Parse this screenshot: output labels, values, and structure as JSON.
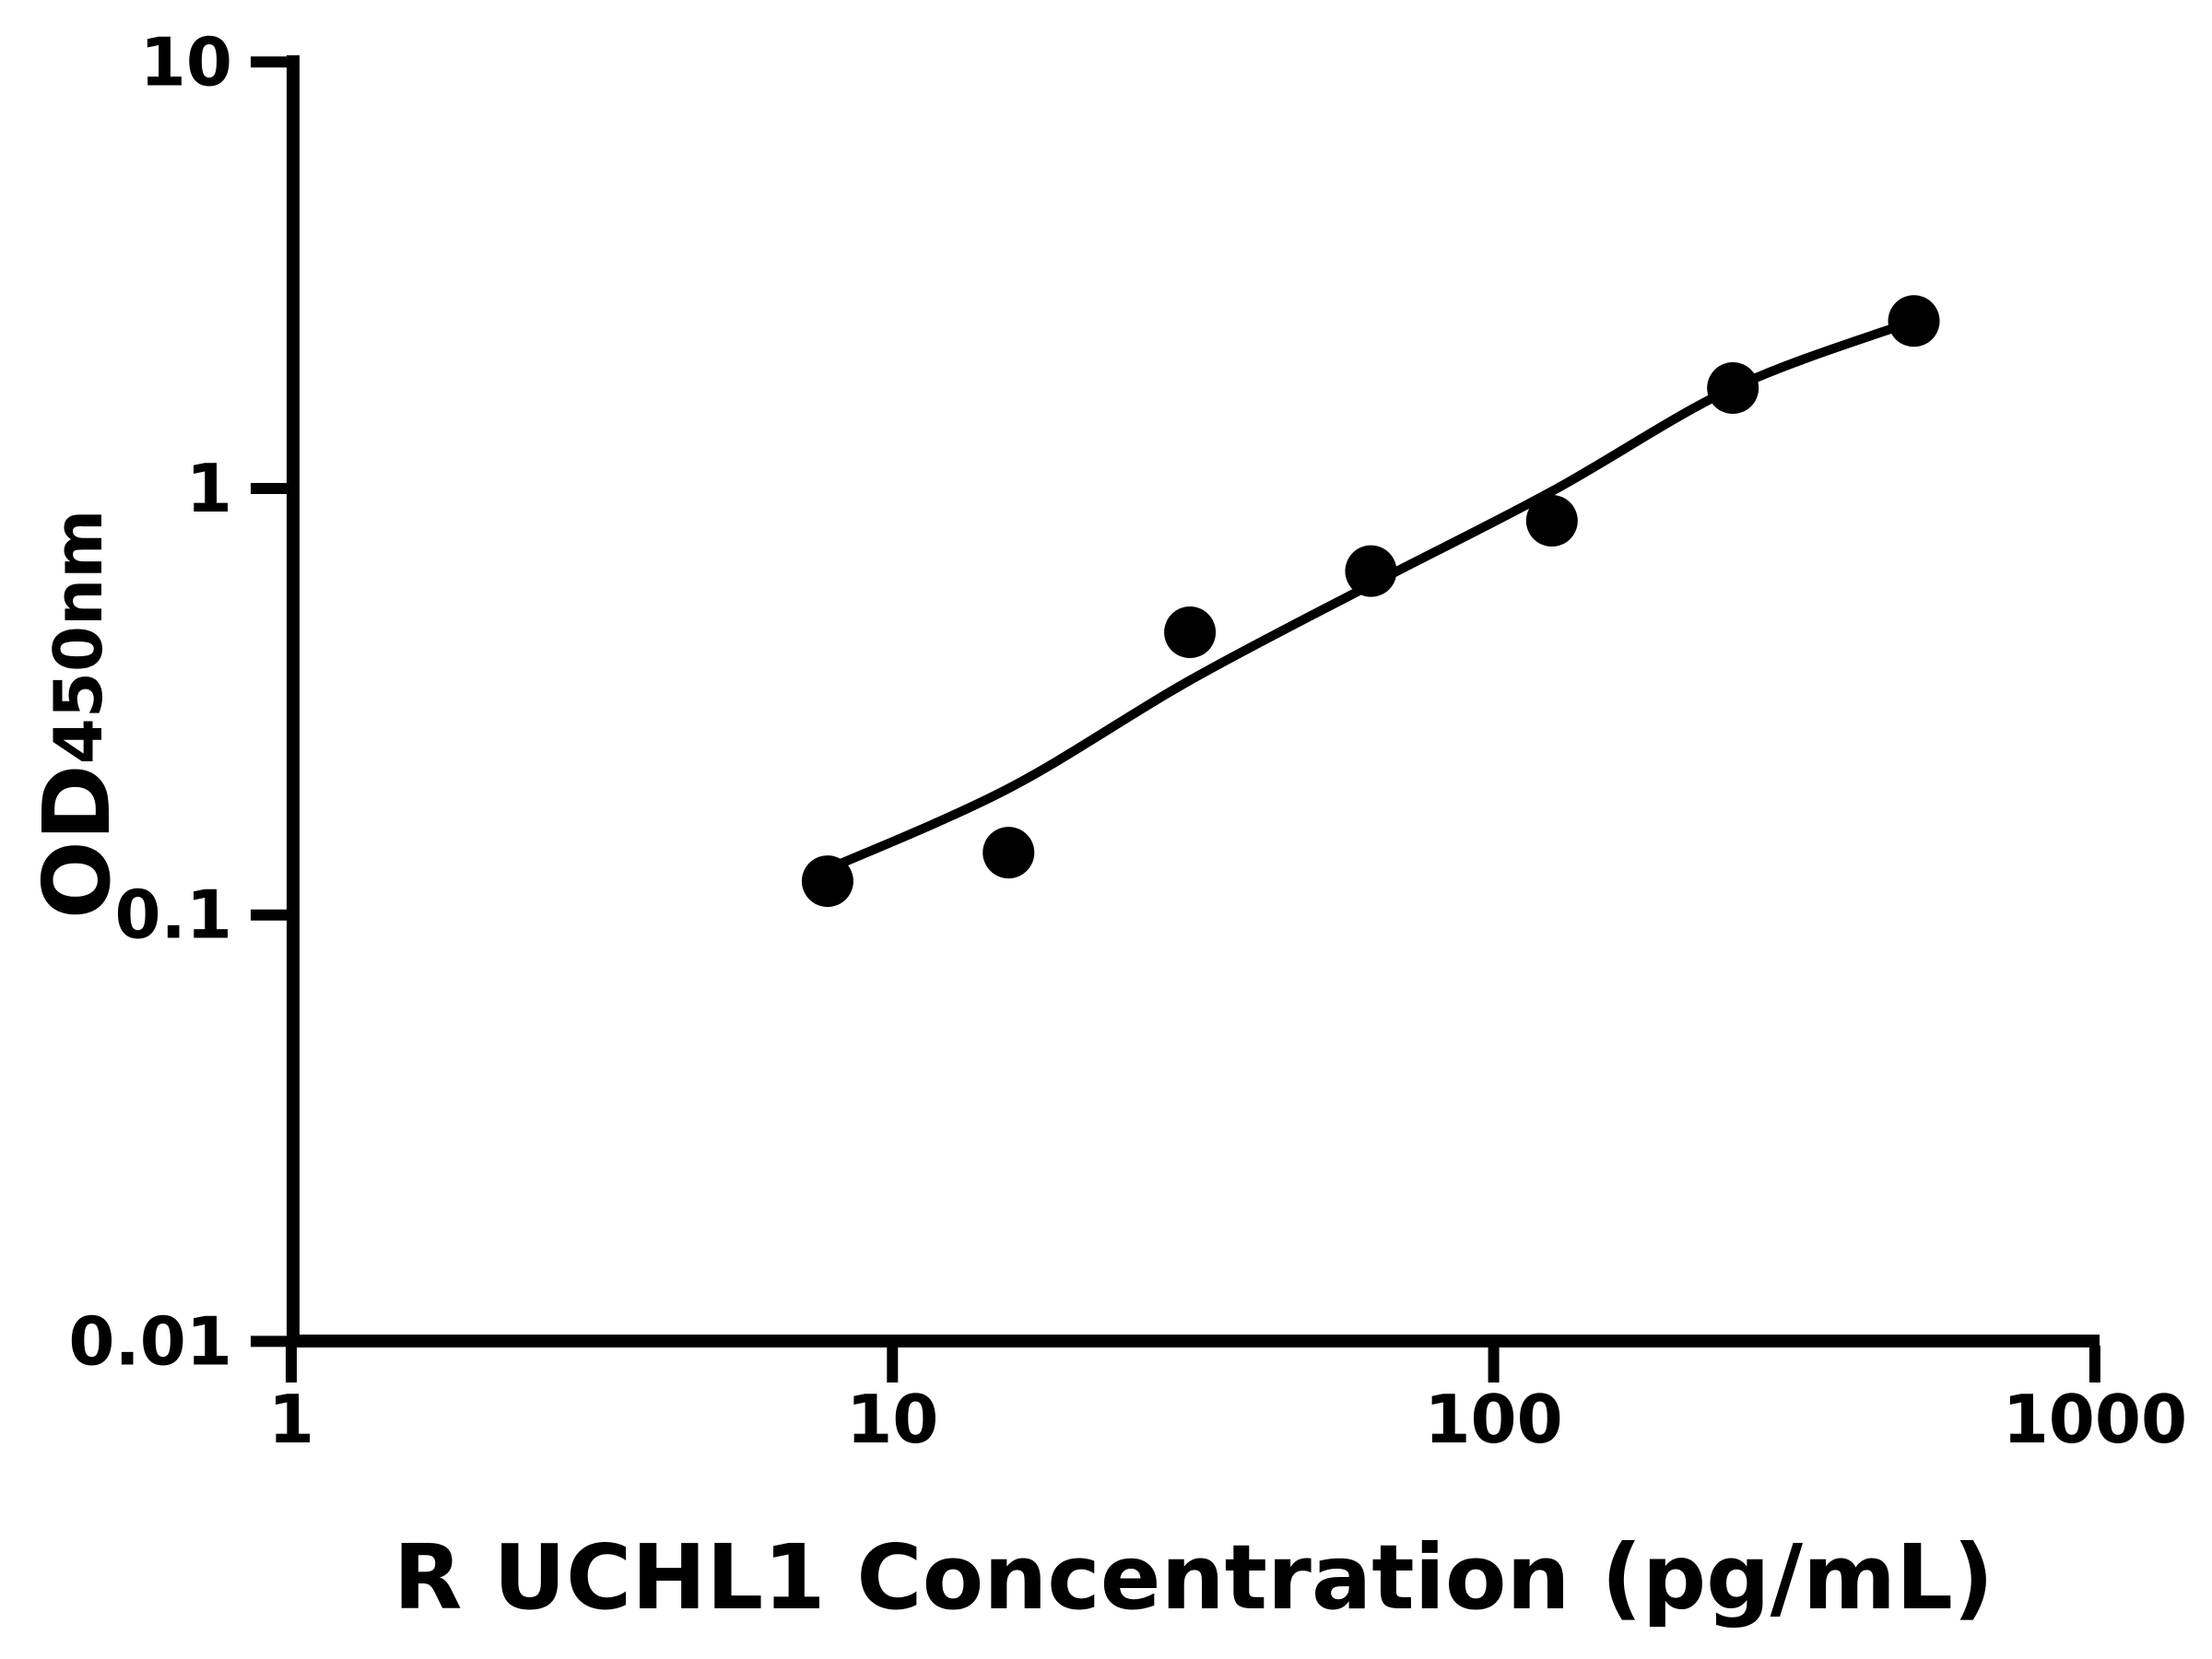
{
  "figure": {
    "background_color": "#ffffff",
    "ink_color": "#000000"
  },
  "chart_data": {
    "type": "scatter",
    "title": "",
    "xlabel": "R UCHL1 Concentration (pg/mL)",
    "ylabel_main": "OD",
    "ylabel_subscript": "450nm",
    "x_scale": "log10",
    "y_scale": "log10",
    "xlim": [
      1,
      1000
    ],
    "ylim": [
      0.01,
      10
    ],
    "grid": false,
    "legend": null,
    "x_ticks": [
      {
        "value": 1,
        "label": "1"
      },
      {
        "value": 10,
        "label": "10"
      },
      {
        "value": 100,
        "label": "100"
      },
      {
        "value": 1000,
        "label": "1000"
      }
    ],
    "y_ticks": [
      {
        "value": 10,
        "label": "10"
      },
      {
        "value": 1,
        "label": "1"
      },
      {
        "value": 0.1,
        "label": "0.1"
      },
      {
        "value": 0.01,
        "label": "0.01"
      }
    ],
    "series": [
      {
        "name": "standard-points",
        "type": "scatter",
        "marker": "filled-circle",
        "color": "#000000",
        "points": [
          {
            "x": 7.8,
            "y": 0.12
          },
          {
            "x": 15.6,
            "y": 0.14
          },
          {
            "x": 31.25,
            "y": 0.46
          },
          {
            "x": 62.5,
            "y": 0.64
          },
          {
            "x": 125,
            "y": 0.84
          },
          {
            "x": 250,
            "y": 1.72
          },
          {
            "x": 500,
            "y": 2.47
          }
        ]
      },
      {
        "name": "fitted-curve",
        "type": "line",
        "color": "#000000",
        "points": [
          {
            "x": 7.8,
            "y": 0.128
          },
          {
            "x": 15.6,
            "y": 0.198
          },
          {
            "x": 31.25,
            "y": 0.355
          },
          {
            "x": 62.5,
            "y": 0.595
          },
          {
            "x": 125,
            "y": 0.985
          },
          {
            "x": 250,
            "y": 1.72
          },
          {
            "x": 500,
            "y": 2.47
          }
        ]
      }
    ]
  }
}
